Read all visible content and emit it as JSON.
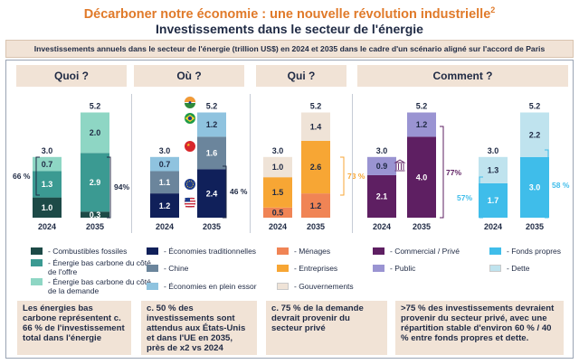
{
  "title": "Décarboner notre économie : une nouvelle révolution industrielle",
  "title_sup": "2",
  "subtitle": "Investissements dans le secteur de l'énergie",
  "banner": "Investissements annuels dans le secteur de l'énergie (trillion US$) en 2024 et 2035 dans le cadre d'un scénario aligné sur l'accord de Paris",
  "panels": [
    {
      "header": "Quoi ?"
    },
    {
      "header": "Où ?"
    },
    {
      "header": "Qui ?"
    },
    {
      "header": "Comment ?"
    }
  ],
  "chart_data": [
    {
      "type": "bar",
      "stacked": true,
      "categories": [
        "2024",
        "2035"
      ],
      "totals": [
        3.0,
        5.2
      ],
      "series": [
        {
          "name": "Combustibles fossiles",
          "color": "#1d4a47",
          "values": [
            1.0,
            0.3
          ]
        },
        {
          "name": "Énergie bas carbone du côté de l'offre",
          "color": "#3b9a92",
          "values": [
            1.3,
            2.9
          ]
        },
        {
          "name": "Énergie bas carbone du côté de la demande",
          "color": "#8ed6c4",
          "values": [
            0.7,
            2.0
          ]
        }
      ],
      "annotations": [
        "66 %",
        "94%"
      ]
    },
    {
      "type": "bar",
      "stacked": true,
      "categories": [
        "2024",
        "2035"
      ],
      "totals": [
        3.0,
        5.2
      ],
      "series": [
        {
          "name": "Économies traditionnelles",
          "color": "#10205a",
          "values": [
            1.2,
            2.4
          ]
        },
        {
          "name": "Chine",
          "color": "#6b859c",
          "values": [
            1.1,
            1.6
          ]
        },
        {
          "name": "Économies en plein essor",
          "color": "#8fc3df",
          "values": [
            0.7,
            1.2
          ]
        }
      ],
      "annotations": [
        "46 %"
      ]
    },
    {
      "type": "bar",
      "stacked": true,
      "categories": [
        "2024",
        "2035"
      ],
      "totals": [
        3.0,
        5.2
      ],
      "series": [
        {
          "name": "Ménages",
          "color": "#f08455",
          "values": [
            0.5,
            1.2
          ]
        },
        {
          "name": "Entreprises",
          "color": "#f7a634",
          "values": [
            1.5,
            2.6
          ]
        },
        {
          "name": "Gouvernements",
          "color": "#efe3d7",
          "values": [
            1.0,
            1.4
          ]
        }
      ],
      "annotations": [
        "73 %"
      ]
    },
    {
      "type": "bar",
      "stacked": true,
      "categories": [
        "2024",
        "2035"
      ],
      "totals": [
        3.0,
        5.2
      ],
      "series": [
        {
          "name": "Commercial / Privé",
          "color": "#5e1f62",
          "values": [
            2.1,
            4.0
          ]
        },
        {
          "name": "Public",
          "color": "#9a94d2",
          "values": [
            0.9,
            1.2
          ]
        }
      ],
      "annotations": [
        "77%"
      ]
    },
    {
      "type": "bar",
      "stacked": true,
      "categories": [
        "2024",
        "2035"
      ],
      "totals": [
        3.0,
        5.2
      ],
      "series": [
        {
          "name": "Fonds propres",
          "color": "#3fbdea",
          "values": [
            1.7,
            3.0
          ]
        },
        {
          "name": "Dette",
          "color": "#bfe3ee",
          "values": [
            1.3,
            2.2
          ]
        }
      ],
      "annotations": [
        "57%",
        "58 %"
      ]
    }
  ],
  "legend": [
    {
      "label": "- Combustibles fossiles",
      "color": "#1d4a47"
    },
    {
      "label": "- Énergie bas carbone du côté de l'offre",
      "color": "#3b9a92"
    },
    {
      "label": "- Énergie bas carbone du côté de la demande",
      "color": "#8ed6c4"
    },
    {
      "label": "- Économies traditionnelles",
      "color": "#10205a"
    },
    {
      "label": "- Chine",
      "color": "#6b859c"
    },
    {
      "label": "- Économies en plein essor",
      "color": "#8fc3df"
    },
    {
      "label": "- Ménages",
      "color": "#f08455"
    },
    {
      "label": "- Entreprises",
      "color": "#f7a634"
    },
    {
      "label": "- Gouvernements",
      "color": "#efe3d7"
    },
    {
      "label": "- Commercial / Privé",
      "color": "#5e1f62"
    },
    {
      "label": "- Public",
      "color": "#9a94d2"
    },
    {
      "label": "- Fonds propres",
      "color": "#3fbdea"
    },
    {
      "label": "- Dette",
      "color": "#bfe3ee"
    }
  ],
  "cards": [
    "Les énergies bas carbone représentent c. 66 % de l'investissement total dans l'énergie",
    "c. 50 % des investissements sont attendus aux États-Unis et dans l'UE en 2035, près de x2 vs 2024",
    "c. 75 % de la demande devrait provenir du secteur privé",
    ">75 % des investissements devraient provenir du secteur privé, avec une répartition stable d'environ 60 % / 40 % entre fonds propres et dette."
  ]
}
